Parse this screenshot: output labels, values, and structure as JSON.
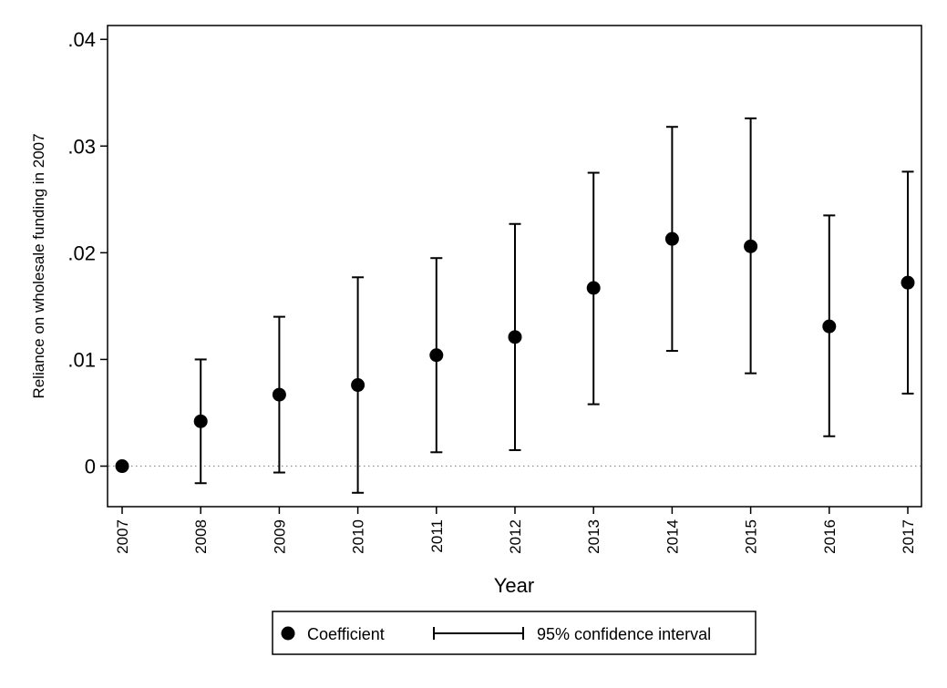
{
  "chart_data": {
    "type": "scatter",
    "xlabel": "Year",
    "ylabel": "Reliance on wholesale funding in 2007",
    "x": [
      "2007",
      "2008",
      "2009",
      "2010",
      "2011",
      "2012",
      "2013",
      "2014",
      "2015",
      "2016",
      "2017"
    ],
    "yticks": [
      "0",
      ".01",
      ".02",
      ".03",
      ".04"
    ],
    "ytick_values": [
      0,
      0.01,
      0.02,
      0.03,
      0.04
    ],
    "ylim": [
      -0.0038,
      0.0413
    ],
    "reference_line": {
      "y": 0,
      "style": "dotted"
    },
    "grid": false,
    "legend_position": "bottom",
    "series": [
      {
        "name": "Coefficient",
        "values": [
          0,
          0.0042,
          0.0067,
          0.0076,
          0.0104,
          0.0121,
          0.0167,
          0.0213,
          0.0206,
          0.0131,
          0.0172
        ]
      },
      {
        "name": "95% confidence interval",
        "lower": [
          null,
          -0.0016,
          -0.0006,
          -0.0025,
          0.0013,
          0.0015,
          0.0058,
          0.0108,
          0.0087,
          0.0028,
          0.0068
        ],
        "upper": [
          null,
          0.01,
          0.014,
          0.0177,
          0.0195,
          0.0227,
          0.0275,
          0.0318,
          0.0326,
          0.0235,
          0.0276
        ]
      }
    ],
    "legend": {
      "coefficient_label": "Coefficient",
      "ci_label": "95% confidence interval"
    }
  }
}
